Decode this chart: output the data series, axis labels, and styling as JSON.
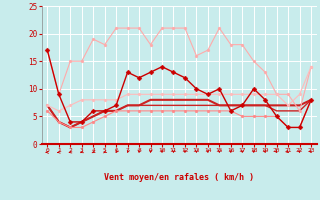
{
  "xlabel": "Vent moyen/en rafales ( km/h )",
  "x": [
    0,
    1,
    2,
    3,
    4,
    5,
    6,
    7,
    8,
    9,
    10,
    11,
    12,
    13,
    14,
    15,
    16,
    17,
    18,
    19,
    20,
    21,
    22,
    23
  ],
  "series": [
    {
      "y": [
        17,
        9,
        15,
        15,
        19,
        18,
        21,
        21,
        21,
        18,
        21,
        21,
        21,
        16,
        17,
        21,
        18,
        18,
        15,
        13,
        9,
        9,
        6,
        14
      ],
      "color": "#ffaaaa",
      "lw": 0.8,
      "marker": "o",
      "ms": 2.0,
      "zorder": 3
    },
    {
      "y": [
        7,
        6,
        7,
        8,
        8,
        8,
        8,
        9,
        9,
        9,
        9,
        9,
        9,
        9,
        9,
        9,
        9,
        9,
        9,
        9,
        9,
        7,
        9,
        14
      ],
      "color": "#ffbbbb",
      "lw": 0.8,
      "marker": "o",
      "ms": 2.0,
      "zorder": 3
    },
    {
      "y": [
        6,
        4,
        3,
        3,
        4,
        5,
        6,
        6,
        6,
        6,
        6,
        6,
        6,
        6,
        6,
        6,
        6,
        5,
        5,
        5,
        5,
        3,
        3,
        8
      ],
      "color": "#ff8888",
      "lw": 0.8,
      "marker": "o",
      "ms": 2.0,
      "zorder": 3
    },
    {
      "y": [
        7,
        4,
        3,
        4,
        5,
        6,
        6,
        7,
        7,
        7,
        7,
        7,
        7,
        7,
        7,
        7,
        7,
        7,
        7,
        7,
        6,
        6,
        6,
        8
      ],
      "color": "#cc2222",
      "lw": 1.0,
      "marker": null,
      "ms": 0,
      "zorder": 2
    },
    {
      "y": [
        7,
        4,
        3,
        4,
        5,
        6,
        6,
        7,
        7,
        8,
        8,
        8,
        8,
        8,
        8,
        7,
        7,
        7,
        7,
        7,
        7,
        7,
        7,
        8
      ],
      "color": "#cc2222",
      "lw": 1.5,
      "marker": null,
      "ms": 0,
      "zorder": 2
    },
    {
      "y": [
        17,
        9,
        4,
        4,
        6,
        6,
        7,
        13,
        12,
        13,
        14,
        13,
        12,
        10,
        9,
        10,
        6,
        7,
        10,
        8,
        5,
        3,
        3,
        8
      ],
      "color": "#cc0000",
      "lw": 1.0,
      "marker": "D",
      "ms": 2.5,
      "zorder": 4
    }
  ],
  "arrow_angles": [
    -90,
    -70,
    -60,
    -50,
    -45,
    -40,
    -20,
    -10,
    0,
    0,
    0,
    0,
    0,
    0,
    0,
    0,
    0,
    0,
    0,
    10,
    20,
    30,
    10,
    20
  ],
  "ylim": [
    0,
    25
  ],
  "yticks": [
    0,
    5,
    10,
    15,
    20,
    25
  ],
  "bg_color": "#c8ecec",
  "grid_color": "#ffffff",
  "tick_color": "#cc0000",
  "label_color": "#cc0000",
  "arrow_color": "#cc0000"
}
